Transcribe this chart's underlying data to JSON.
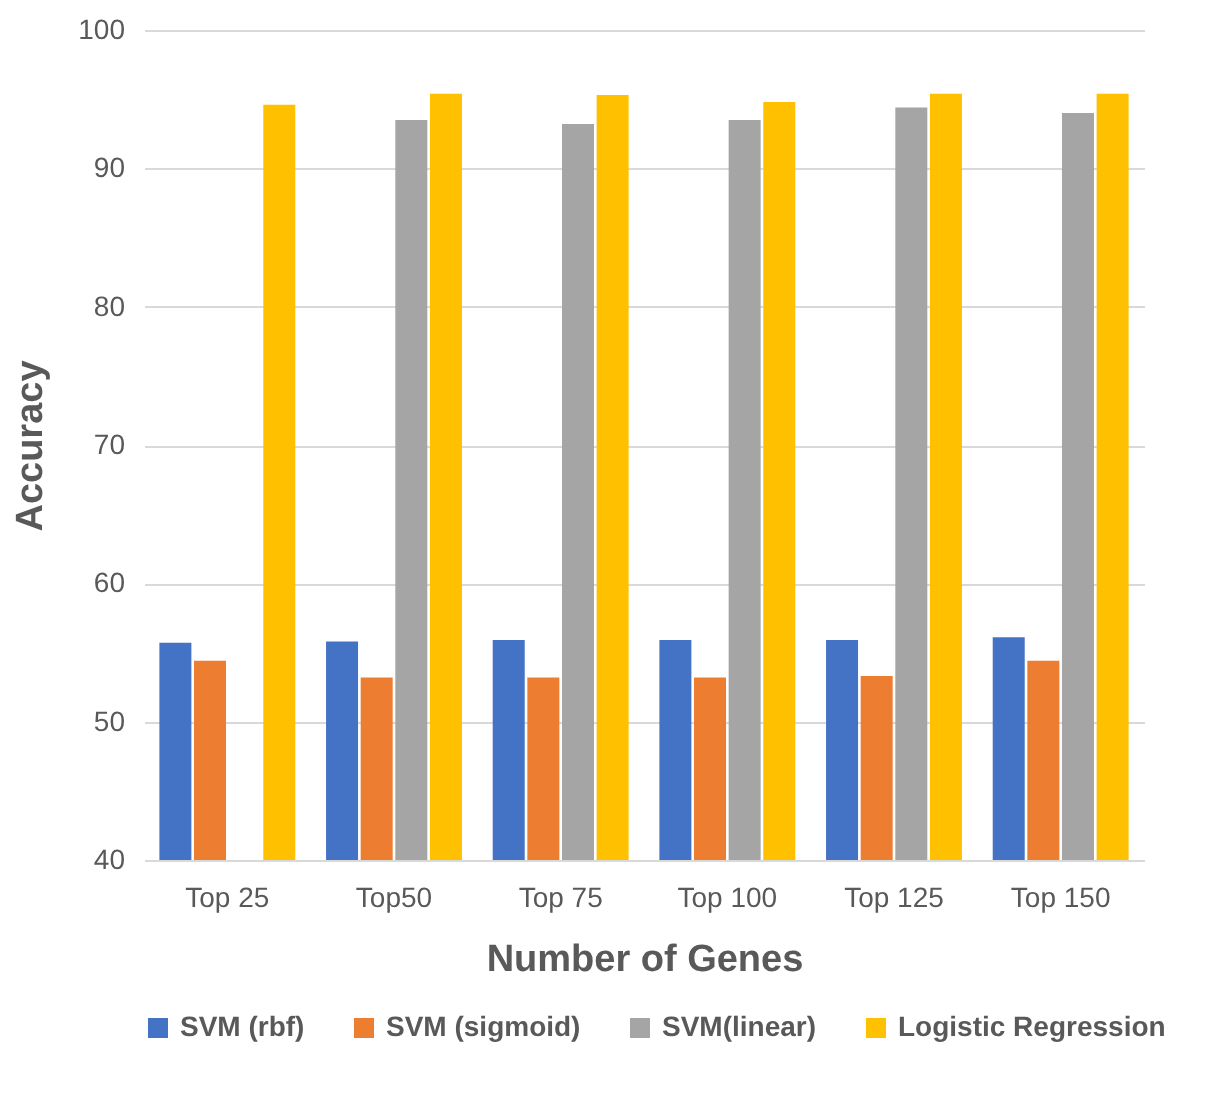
{
  "chart_data": {
    "type": "bar",
    "xlabel": "Number of Genes",
    "ylabel": "Accuracy",
    "categories": [
      "Top 25",
      "Top50",
      "Top 75",
      "Top 100",
      "Top 125",
      "Top 150"
    ],
    "series": [
      {
        "name": "SVM (rbf)",
        "color": "#4472c4",
        "values": [
          55.7,
          55.8,
          55.9,
          55.9,
          55.9,
          56.1
        ]
      },
      {
        "name": "SVM (sigmoid)",
        "color": "#ed7d31",
        "values": [
          54.4,
          53.2,
          53.2,
          53.2,
          53.3,
          54.4
        ]
      },
      {
        "name": "SVM(linear)",
        "color": "#a5a5a5",
        "values": [
          null,
          93.5,
          93.2,
          93.5,
          94.4,
          94.0
        ]
      },
      {
        "name": "Logistic Regression",
        "color": "#ffc000",
        "values": [
          94.6,
          95.4,
          95.3,
          94.8,
          95.4,
          95.4
        ]
      }
    ],
    "ylim": [
      40,
      100
    ],
    "yticks": [
      40,
      50,
      60,
      70,
      80,
      90,
      100
    ],
    "grid": "y",
    "legend": "bottom"
  }
}
